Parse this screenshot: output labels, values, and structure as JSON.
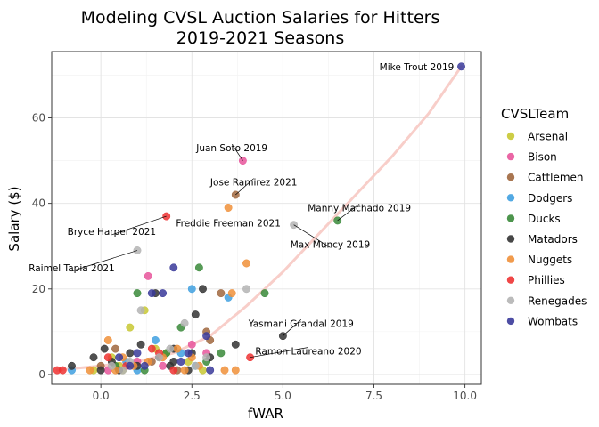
{
  "chart_data": {
    "type": "scatter",
    "title": "Modeling CVSL Auction Salaries for Hitters",
    "subtitle": "2019-2021 Seasons",
    "xlabel": "fWAR",
    "ylabel": "Salary ($)",
    "xlim": [
      -1.35,
      10.45
    ],
    "ylim": [
      -2.3,
      75.5
    ],
    "x_ticks": [
      0.0,
      2.5,
      5.0,
      7.5,
      10.0
    ],
    "x_tick_labels": [
      "0.0",
      "2.5",
      "5.0",
      "7.5",
      "10.0"
    ],
    "y_ticks": [
      0,
      20,
      40,
      60
    ],
    "y_tick_labels": [
      "0",
      "20",
      "40",
      "60"
    ],
    "grid": true,
    "legend": {
      "title": "CVSLTeam",
      "placement": "right",
      "entries": [
        {
          "name": "Arsenal",
          "color": "#c8c832"
        },
        {
          "name": "Bison",
          "color": "#e8559b"
        },
        {
          "name": "Cattlemen",
          "color": "#a0673e"
        },
        {
          "name": "Dodgers",
          "color": "#3fa0e0"
        },
        {
          "name": "Ducks",
          "color": "#3a8a3a"
        },
        {
          "name": "Matadors",
          "color": "#333333"
        },
        {
          "name": "Nuggets",
          "color": "#f0903a"
        },
        {
          "name": "Phillies",
          "color": "#ee3333"
        },
        {
          "name": "Renegades",
          "color": "#b4b4b4"
        },
        {
          "name": "Wombats",
          "color": "#3a3a9a"
        }
      ]
    },
    "trend_curve": {
      "color": "#f7c6c0",
      "points": [
        [
          -1.2,
          1
        ],
        [
          0,
          2
        ],
        [
          1,
          3
        ],
        [
          2,
          5
        ],
        [
          3,
          9
        ],
        [
          4,
          16
        ],
        [
          5,
          24
        ],
        [
          6,
          33
        ],
        [
          7,
          42
        ],
        [
          8,
          51
        ],
        [
          9,
          61
        ],
        [
          9.9,
          72
        ]
      ]
    },
    "annotations": [
      {
        "text": "Mike Trout 2019",
        "x": 9.9,
        "y": 72,
        "tx": 9.7,
        "ty": 72,
        "anchor": "end",
        "leader": false
      },
      {
        "text": "Juan Soto 2019",
        "x": 3.9,
        "y": 50,
        "tx": 3.6,
        "ty": 53,
        "anchor": "middle",
        "leader": true
      },
      {
        "text": "Jose Ramirez 2021",
        "x": 3.7,
        "y": 42,
        "tx": 4.2,
        "ty": 45,
        "anchor": "middle",
        "leader": true
      },
      {
        "text": "Manny Machado 2019",
        "x": 6.5,
        "y": 36,
        "tx": 7.1,
        "ty": 39,
        "anchor": "middle",
        "leader": true
      },
      {
        "text": "Bryce Harper 2021",
        "x": 1.8,
        "y": 37,
        "tx": 0.3,
        "ty": 33.5,
        "anchor": "middle",
        "leader": true
      },
      {
        "text": "Freddie Freeman 2021",
        "x": 3.5,
        "y": 39,
        "tx": 3.5,
        "ty": 35.5,
        "anchor": "middle",
        "leader": false
      },
      {
        "text": "Max Muncy 2019",
        "x": 5.3,
        "y": 35,
        "tx": 6.3,
        "ty": 30.5,
        "anchor": "middle",
        "leader": true
      },
      {
        "text": "Raimel Tapia 2021",
        "x": 1.0,
        "y": 29,
        "tx": -0.8,
        "ty": 25,
        "anchor": "middle",
        "leader": true
      },
      {
        "text": "Yasmani Grandal 2019",
        "x": 5.0,
        "y": 9,
        "tx": 5.5,
        "ty": 12,
        "anchor": "middle",
        "leader": true
      },
      {
        "text": "Ramon Laureano 2020",
        "x": 4.1,
        "y": 4,
        "tx": 5.7,
        "ty": 5.5,
        "anchor": "middle",
        "leader": true
      }
    ],
    "series": [
      {
        "name": "Arsenal",
        "color": "#c8c832",
        "points": [
          [
            0.3,
            4
          ],
          [
            0.8,
            11
          ],
          [
            1.2,
            15
          ],
          [
            0.5,
            2
          ],
          [
            1.8,
            5
          ],
          [
            2.4,
            3
          ],
          [
            -0.2,
            1
          ],
          [
            1.5,
            6
          ],
          [
            2.8,
            1
          ],
          [
            0.6,
            1
          ]
        ]
      },
      {
        "name": "Bison",
        "color": "#e8559b",
        "points": [
          [
            3.9,
            50
          ],
          [
            1.3,
            23
          ],
          [
            2.5,
            7
          ],
          [
            1.0,
            3
          ],
          [
            0.2,
            1
          ],
          [
            2.9,
            5
          ],
          [
            1.7,
            2
          ]
        ]
      },
      {
        "name": "Cattlemen",
        "color": "#a0673e",
        "points": [
          [
            3.7,
            42
          ],
          [
            3.3,
            19
          ],
          [
            2.9,
            10
          ],
          [
            3.0,
            8
          ],
          [
            0.4,
            6
          ],
          [
            1.4,
            3
          ],
          [
            2.1,
            1
          ],
          [
            0.0,
            2
          ]
        ]
      },
      {
        "name": "Dodgers",
        "color": "#3fa0e0",
        "points": [
          [
            2.5,
            20
          ],
          [
            3.5,
            18
          ],
          [
            1.5,
            8
          ],
          [
            2.2,
            5
          ],
          [
            -0.8,
            1
          ],
          [
            0.7,
            3
          ],
          [
            2.6,
            2
          ],
          [
            1.0,
            1
          ]
        ]
      },
      {
        "name": "Ducks",
        "color": "#3a8a3a",
        "points": [
          [
            6.5,
            36
          ],
          [
            4.5,
            19
          ],
          [
            2.7,
            25
          ],
          [
            1.0,
            19
          ],
          [
            2.2,
            11
          ],
          [
            1.8,
            5
          ],
          [
            3.3,
            5
          ],
          [
            0.4,
            2
          ],
          [
            1.2,
            1
          ],
          [
            2.9,
            3
          ]
        ]
      },
      {
        "name": "Matadors",
        "color": "#333333",
        "points": [
          [
            5.0,
            9
          ],
          [
            3.7,
            7
          ],
          [
            2.0,
            6
          ],
          [
            1.1,
            7
          ],
          [
            0.1,
            6
          ],
          [
            2.8,
            20
          ],
          [
            2.6,
            14
          ],
          [
            1.5,
            19
          ],
          [
            -0.2,
            4
          ],
          [
            0.5,
            1
          ],
          [
            1.0,
            2
          ],
          [
            2.0,
            3
          ],
          [
            3.0,
            4
          ],
          [
            0.8,
            5
          ],
          [
            1.9,
            2
          ],
          [
            2.4,
            1
          ],
          [
            0.3,
            3
          ],
          [
            1.6,
            4
          ],
          [
            -0.8,
            2
          ],
          [
            2.5,
            5
          ],
          [
            0.0,
            1
          ]
        ]
      },
      {
        "name": "Nuggets",
        "color": "#f0903a",
        "points": [
          [
            3.5,
            39
          ],
          [
            4.0,
            26
          ],
          [
            3.6,
            19
          ],
          [
            3.4,
            1
          ],
          [
            3.7,
            1
          ],
          [
            0.2,
            8
          ],
          [
            0.6,
            4
          ],
          [
            1.3,
            3
          ],
          [
            2.1,
            6
          ],
          [
            2.7,
            2
          ],
          [
            -0.3,
            1
          ],
          [
            0.9,
            2
          ],
          [
            1.7,
            4
          ],
          [
            2.3,
            1
          ],
          [
            0.4,
            1
          ],
          [
            2.5,
            4
          ]
        ]
      },
      {
        "name": "Phillies",
        "color": "#ee3333",
        "points": [
          [
            1.8,
            37
          ],
          [
            4.1,
            4
          ],
          [
            -1.2,
            1
          ],
          [
            -1.05,
            1
          ],
          [
            1.4,
            6
          ],
          [
            0.7,
            2
          ],
          [
            2.0,
            1
          ],
          [
            0.2,
            4
          ],
          [
            1.6,
            5
          ]
        ]
      },
      {
        "name": "Renegades",
        "color": "#b4b4b4",
        "points": [
          [
            5.3,
            35
          ],
          [
            1.0,
            29
          ],
          [
            4.0,
            20
          ],
          [
            1.1,
            15
          ],
          [
            2.3,
            12
          ],
          [
            0.8,
            3
          ],
          [
            1.6,
            4
          ],
          [
            2.9,
            4
          ],
          [
            0.3,
            2
          ],
          [
            1.9,
            6
          ],
          [
            2.6,
            2
          ],
          [
            0.6,
            1
          ]
        ]
      },
      {
        "name": "Wombats",
        "color": "#3a3a9a",
        "points": [
          [
            9.9,
            72
          ],
          [
            2.0,
            25
          ],
          [
            1.4,
            19
          ],
          [
            1.7,
            19
          ],
          [
            2.9,
            9
          ],
          [
            0.5,
            4
          ],
          [
            1.2,
            2
          ],
          [
            2.4,
            5
          ],
          [
            0.8,
            2
          ],
          [
            3.0,
            1
          ],
          [
            1.0,
            5
          ],
          [
            2.2,
            3
          ]
        ]
      }
    ]
  }
}
